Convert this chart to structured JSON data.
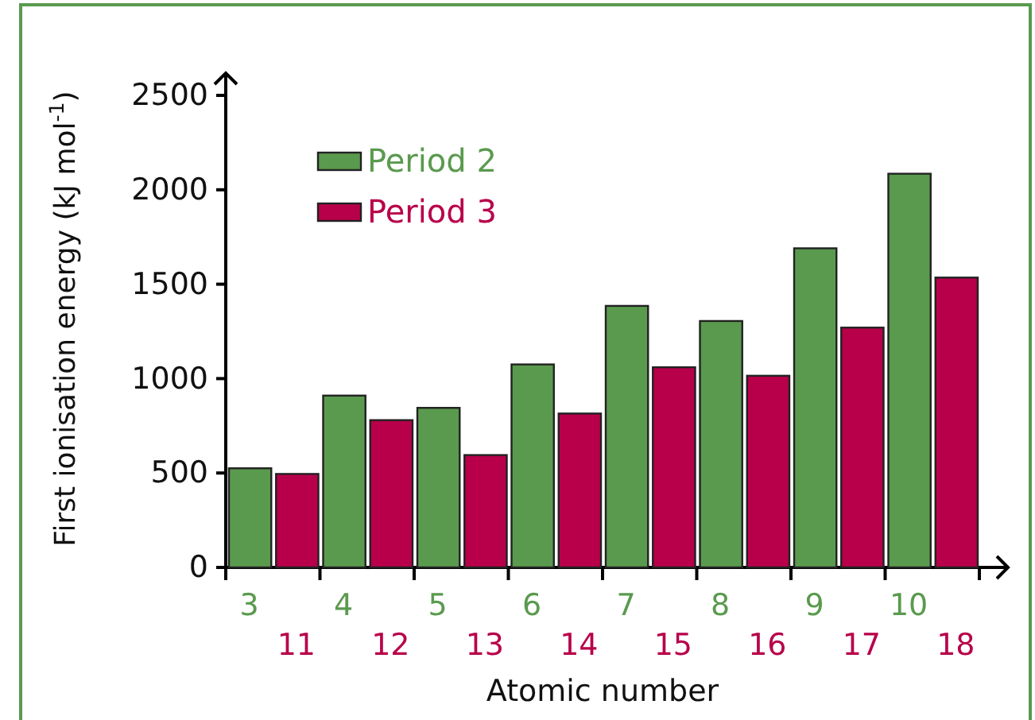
{
  "chart_data": {
    "type": "bar",
    "xlabel": "Atomic number",
    "ylabel": "First ionisation energy (kJ mol$^{-1}$)",
    "categories": [
      "3\n11",
      "4\n12",
      "5\n13",
      "6\n14",
      "7\n15",
      "8\n16",
      "9\n17",
      "10\n18"
    ],
    "series": [
      {
        "name": "Period 2",
        "color": "#5a9a4e",
        "values": [
          525,
          910,
          845,
          1075,
          1385,
          1305,
          1690,
          2085
        ]
      },
      {
        "name": "Period 3",
        "color": "#b8004a",
        "values": [
          495,
          780,
          595,
          815,
          1060,
          1015,
          1270,
          1535
        ]
      }
    ],
    "ylim": [
      0,
      2500
    ],
    "yticks": [
      0,
      500,
      1000,
      1500,
      2000,
      2500
    ],
    "legend": "top left"
  }
}
